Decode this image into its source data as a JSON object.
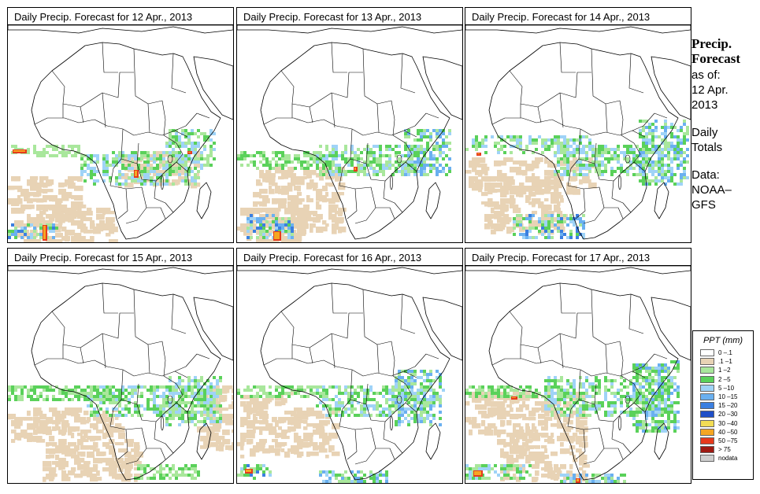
{
  "panels": [
    {
      "title": "Daily Precip. Forecast for  12 Apr., 2013",
      "precip_pattern": "day1"
    },
    {
      "title": "Daily Precip. Forecast for  13 Apr., 2013",
      "precip_pattern": "day2"
    },
    {
      "title": "Daily Precip. Forecast for  14 Apr., 2013",
      "precip_pattern": "day3"
    },
    {
      "title": "Daily Precip. Forecast for  15 Apr., 2013",
      "precip_pattern": "day4"
    },
    {
      "title": "Daily Precip. Forecast for  16 Apr., 2013",
      "precip_pattern": "day5"
    },
    {
      "title": "Daily Precip. Forecast for  17 Apr., 2013",
      "precip_pattern": "day6"
    }
  ],
  "side_info": {
    "title_line1": "Precip.",
    "title_line2": "Forecast",
    "asof_label": "as of:",
    "date_line1": "12 Apr.",
    "date_line2": "2013",
    "totals_line1": "Daily",
    "totals_line2": "Totals",
    "data_line1": "Data:",
    "data_line2": "NOAA–",
    "data_line3": "GFS"
  },
  "legend": {
    "title": "PPT (mm)",
    "items": [
      {
        "label": "0 –.1",
        "color": "#ffffff"
      },
      {
        "label": ".1 –1",
        "color": "#e8d3b5"
      },
      {
        "label": "1 –2",
        "color": "#a9e79c"
      },
      {
        "label": "2 –5",
        "color": "#5ad15a"
      },
      {
        "label": "5 –10",
        "color": "#9fd3f7"
      },
      {
        "label": "10 –15",
        "color": "#6ab0f0"
      },
      {
        "label": "15 –20",
        "color": "#3b7fe0"
      },
      {
        "label": "20 –30",
        "color": "#1f4fc8"
      },
      {
        "label": "30 –40",
        "color": "#f2dc55"
      },
      {
        "label": "40 –50",
        "color": "#f5a623"
      },
      {
        "label": "50 –75",
        "color": "#e63a1c"
      },
      {
        "label": "> 75",
        "color": "#9e1a12"
      },
      {
        "label": "nodata",
        "color": "#cfcfcf"
      }
    ]
  }
}
